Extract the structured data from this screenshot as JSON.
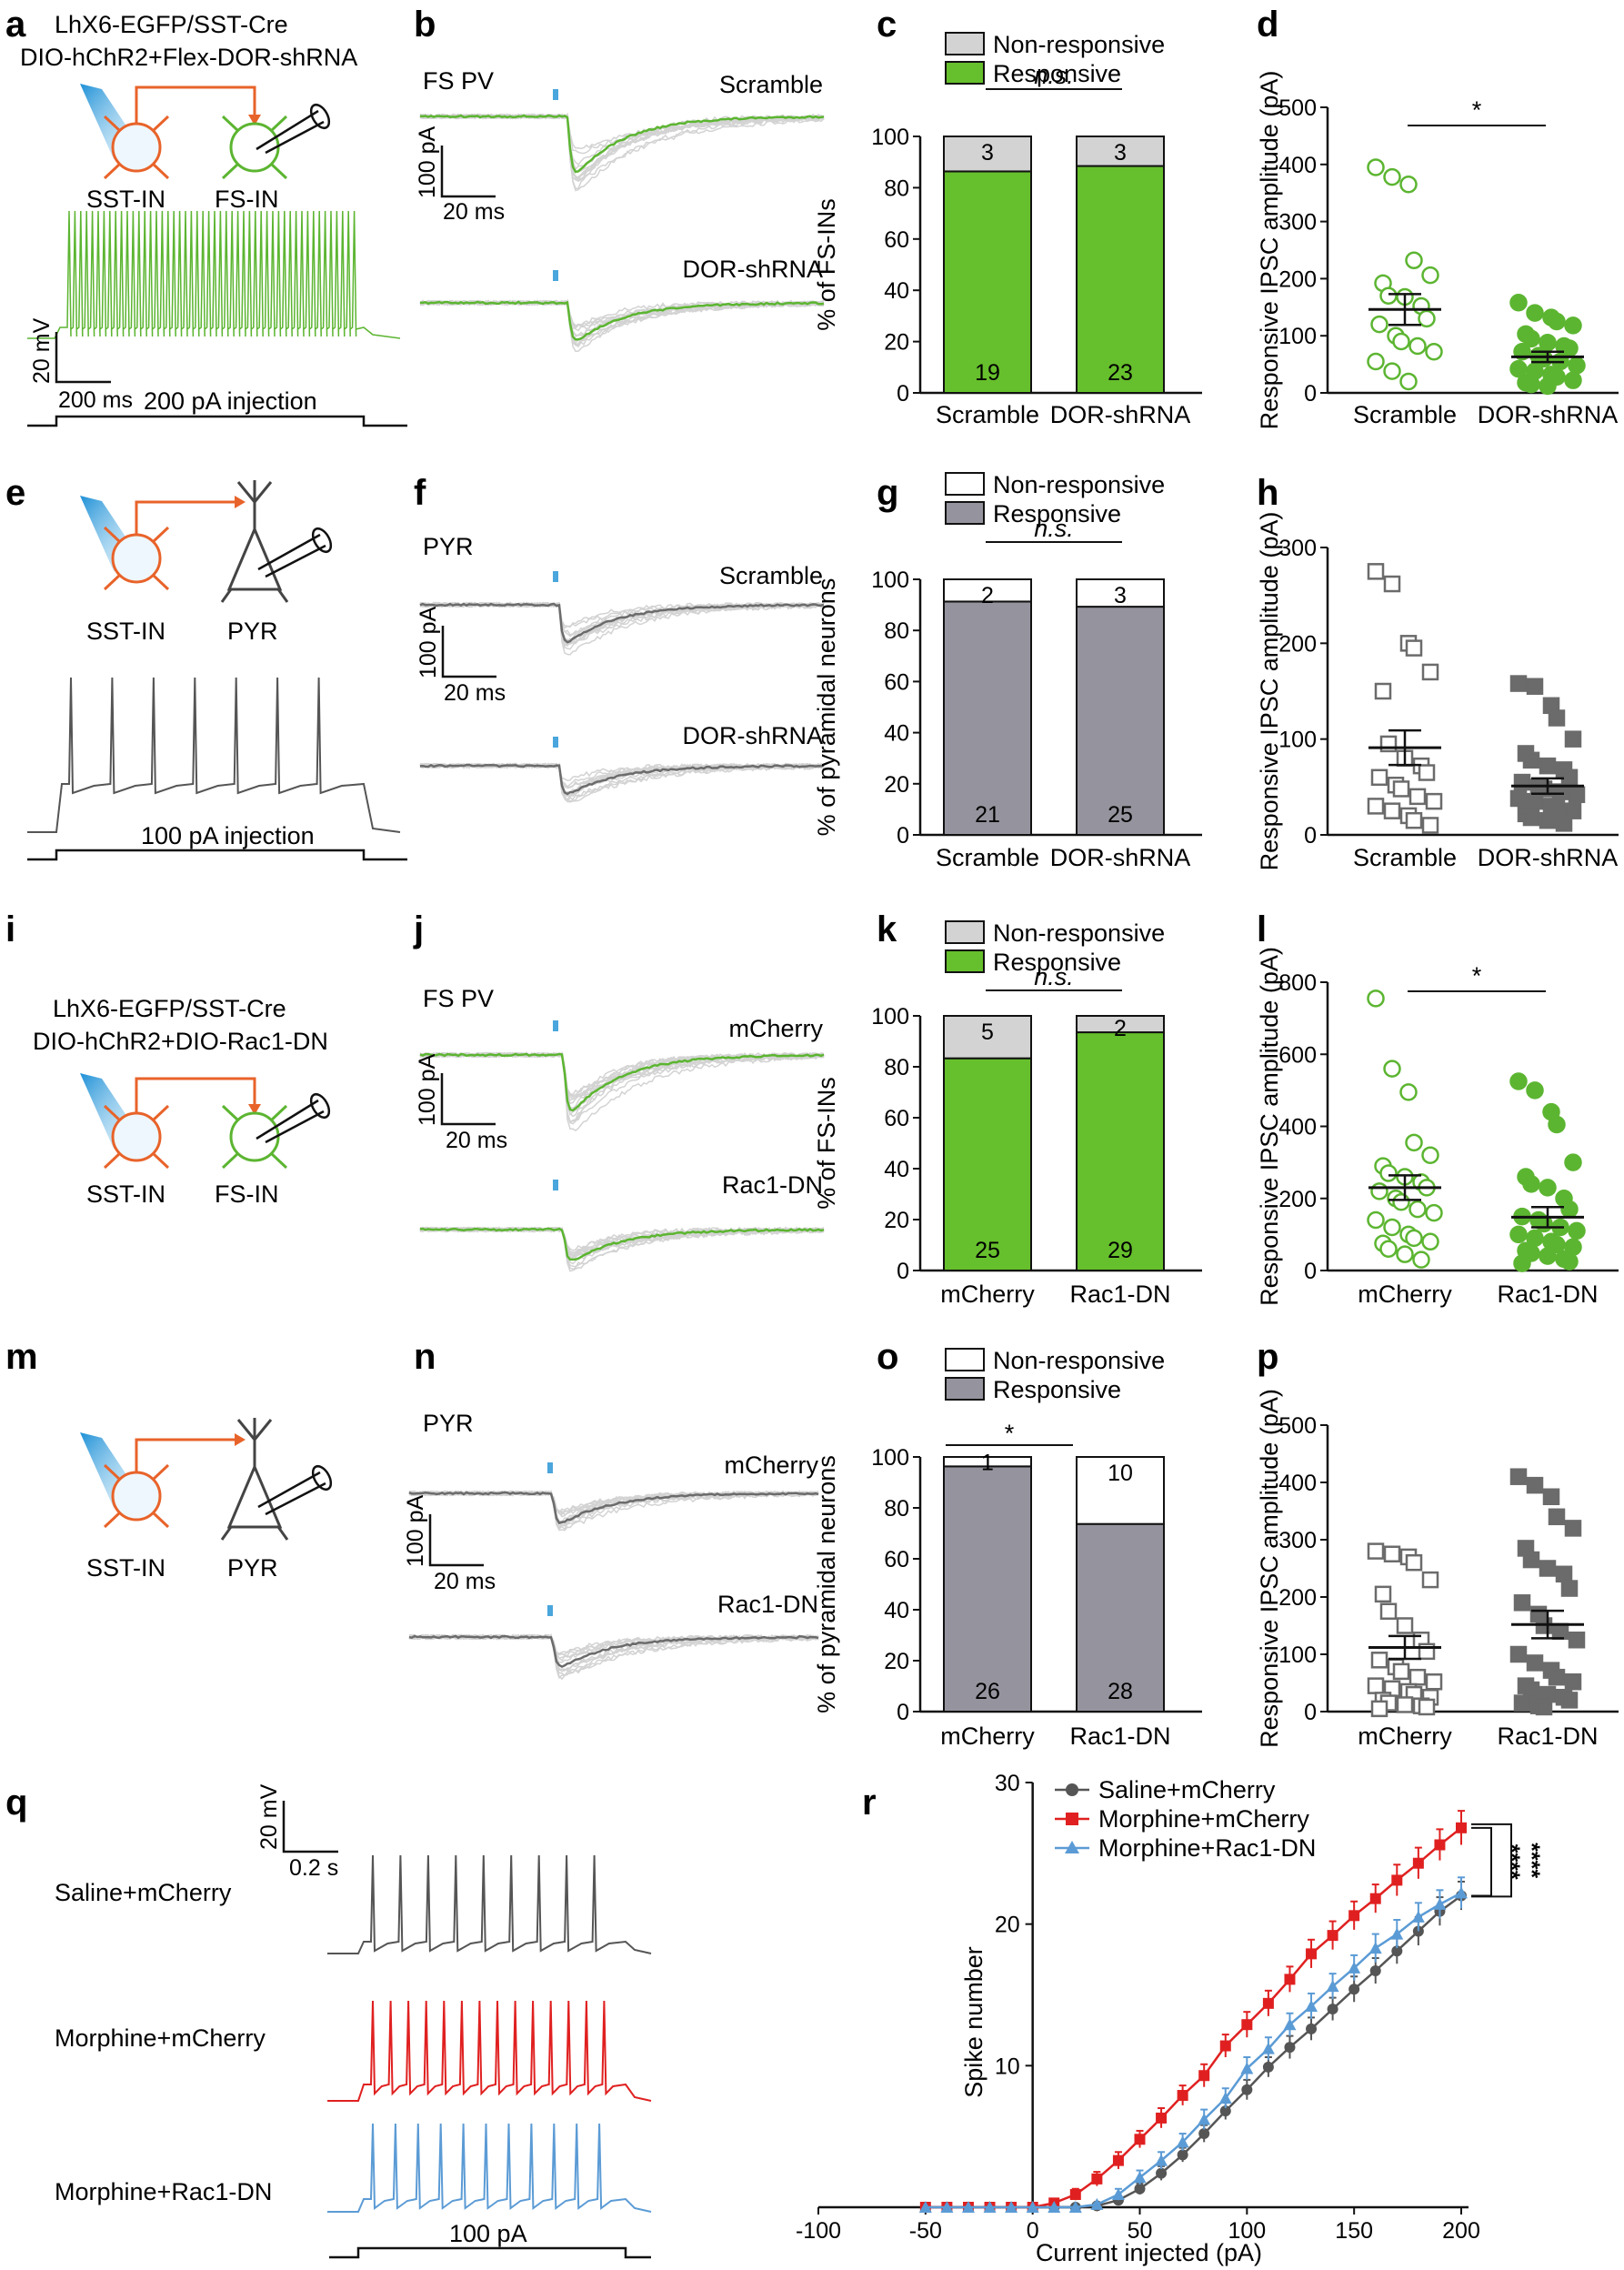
{
  "figure": {
    "panels": {
      "a": {
        "letter": "a",
        "title_lines": [
          "LhX6-EGFP/SST-Cre",
          "DIO-hChR2+Flex-DOR-shRNA"
        ],
        "cell_labels": [
          "SST-IN",
          "FS-IN"
        ],
        "scale_y": "20 mV",
        "scale_x": "200 ms",
        "injection": "200 pA injection"
      },
      "b": {
        "letter": "b",
        "cell_type": "FS PV",
        "trace_labels": [
          "Scramble",
          "DOR-shRNA"
        ],
        "scale_y": "100 pA",
        "scale_x": "20 ms"
      },
      "e": {
        "letter": "e",
        "cell_labels": [
          "SST-IN",
          "PYR"
        ],
        "injection": "100 pA injection"
      },
      "f": {
        "letter": "f",
        "cell_type": "PYR",
        "trace_labels": [
          "Scramble",
          "DOR-shRNA"
        ],
        "scale_y": "100 pA",
        "scale_x": "20 ms"
      },
      "i": {
        "letter": "i",
        "title_lines": [
          "LhX6-EGFP/SST-Cre",
          "DIO-hChR2+DIO-Rac1-DN"
        ],
        "cell_labels": [
          "SST-IN",
          "FS-IN"
        ]
      },
      "j": {
        "letter": "j",
        "cell_type": "FS PV",
        "trace_labels": [
          "mCherry",
          "Rac1-DN"
        ],
        "scale_y": "100 pA",
        "scale_x": "20 ms"
      },
      "m": {
        "letter": "m",
        "cell_labels": [
          "SST-IN",
          "PYR"
        ]
      },
      "n": {
        "letter": "n",
        "cell_type": "PYR",
        "trace_labels": [
          "mCherry",
          "Rac1-DN"
        ],
        "scale_y": "100 pA",
        "scale_x": "20 ms"
      },
      "q": {
        "letter": "q",
        "conditions": [
          "Saline+mCherry",
          "Morphine+mCherry",
          "Morphine+Rac1-DN"
        ],
        "scale_y": "20 mV",
        "scale_x": "0.2 s",
        "injection": "100 pA"
      }
    },
    "colors": {
      "green": "#5cb531",
      "green_fill": "#66bf2c",
      "light_gray": "#d3d3d3",
      "dark_gray": "#6b6b6b",
      "pyr_gray": "#95949e",
      "red": "#e02020",
      "blue": "#5b9bd5",
      "orange": "#e8632a",
      "light_blue": "#4aa6dc"
    }
  },
  "chart_data": [
    {
      "panel": "c",
      "letter": "c",
      "type": "stacked-bar",
      "categories": [
        "Scramble",
        "DOR-shRNA"
      ],
      "series": [
        {
          "name": "Responsive",
          "counts": [
            19,
            23
          ],
          "color": "#66bf2c"
        },
        {
          "name": "Non-responsive",
          "counts": [
            3,
            3
          ],
          "color": "#d3d3d3"
        }
      ],
      "ylabel": "% of  FS-INs",
      "ylim": [
        0,
        100
      ],
      "yticks": [
        0,
        20,
        40,
        60,
        80,
        100
      ],
      "significance": "n.s.",
      "legend": [
        "Non-responsive",
        "Responsive"
      ]
    },
    {
      "panel": "d",
      "letter": "d",
      "type": "scatter",
      "categories": [
        "Scramble",
        "DOR-shRNA"
      ],
      "groups": [
        {
          "name": "Scramble",
          "mean": 146,
          "sem": 27,
          "marker": "circle-open",
          "color": "#5cb531",
          "values": [
            395,
            378,
            365,
            232,
            206,
            192,
            170,
            168,
            152,
            130,
            120,
            100,
            90,
            82,
            72,
            55,
            38,
            20
          ]
        },
        {
          "name": "DOR-shRNA",
          "mean": 63,
          "sem": 9,
          "marker": "circle-filled",
          "color": "#5cb531",
          "values": [
            158,
            140,
            132,
            125,
            118,
            103,
            95,
            88,
            82,
            78,
            72,
            65,
            60,
            55,
            48,
            42,
            38,
            32,
            28,
            22,
            18,
            15,
            12
          ]
        }
      ],
      "ylabel": "Responsive IPSC amplitude (pA)",
      "ylim": [
        0,
        500
      ],
      "yticks": [
        0,
        100,
        200,
        300,
        400,
        500
      ],
      "significance": "*"
    },
    {
      "panel": "g",
      "letter": "g",
      "type": "stacked-bar",
      "categories": [
        "Scramble",
        "DOR-shRNA"
      ],
      "series": [
        {
          "name": "Responsive",
          "counts": [
            21,
            25
          ],
          "color": "#95949e"
        },
        {
          "name": "Non-responsive",
          "counts": [
            2,
            3
          ],
          "color": "#ffffff"
        }
      ],
      "ylabel": "% of  pyramidal neurons",
      "ylim": [
        0,
        100
      ],
      "yticks": [
        0,
        20,
        40,
        60,
        80,
        100
      ],
      "significance": "n.s.",
      "legend": [
        "Non-responsive",
        "Responsive"
      ]
    },
    {
      "panel": "h",
      "letter": "h",
      "type": "scatter",
      "categories": [
        "Scramble",
        "DOR-shRNA"
      ],
      "groups": [
        {
          "name": "Scramble",
          "mean": 91,
          "sem": 18,
          "marker": "square-open",
          "color": "#6b6b6b",
          "values": [
            275,
            262,
            200,
            195,
            170,
            150,
            95,
            80,
            72,
            65,
            60,
            52,
            48,
            40,
            35,
            30,
            25,
            20,
            15,
            10
          ]
        },
        {
          "name": "DOR-shRNA",
          "mean": 51,
          "sem": 8,
          "marker": "square-filled",
          "color": "#6b6b6b",
          "values": [
            158,
            155,
            135,
            122,
            100,
            85,
            78,
            72,
            68,
            60,
            55,
            50,
            48,
            45,
            42,
            38,
            35,
            30,
            28,
            25,
            22,
            18,
            15,
            12
          ]
        }
      ],
      "ylabel": "Responsive IPSC amplitude (pA)",
      "ylim": [
        0,
        300
      ],
      "yticks": [
        0,
        100,
        200,
        300
      ]
    },
    {
      "panel": "k",
      "letter": "k",
      "type": "stacked-bar",
      "categories": [
        "mCherry",
        "Rac1-DN"
      ],
      "series": [
        {
          "name": "Responsive",
          "counts": [
            25,
            29
          ],
          "color": "#66bf2c"
        },
        {
          "name": "Non-responsive",
          "counts": [
            5,
            2
          ],
          "color": "#d3d3d3"
        }
      ],
      "ylabel": "% of  FS-INs",
      "ylim": [
        0,
        100
      ],
      "yticks": [
        0,
        20,
        40,
        60,
        80,
        100
      ],
      "significance": "n.s.",
      "legend": [
        "Non-responsive",
        "Responsive"
      ]
    },
    {
      "panel": "l",
      "letter": "l",
      "type": "scatter",
      "categories": [
        "mCherry",
        "Rac1-DN"
      ],
      "groups": [
        {
          "name": "mCherry",
          "mean": 230,
          "sem": 34,
          "marker": "circle-open",
          "color": "#5cb531",
          "values": [
            755,
            560,
            495,
            355,
            320,
            290,
            270,
            260,
            245,
            230,
            220,
            200,
            190,
            170,
            160,
            140,
            120,
            100,
            90,
            80,
            75,
            60,
            45,
            30
          ]
        },
        {
          "name": "Rac1-DN",
          "mean": 148,
          "sem": 28,
          "marker": "circle-filled",
          "color": "#5cb531",
          "values": [
            525,
            500,
            440,
            405,
            300,
            260,
            240,
            230,
            200,
            170,
            150,
            140,
            130,
            120,
            110,
            100,
            90,
            80,
            72,
            65,
            55,
            48,
            40,
            32,
            25,
            20
          ]
        }
      ],
      "ylabel": "Responsive IPSC amplitude (pA)",
      "ylim": [
        0,
        800
      ],
      "yticks": [
        0,
        200,
        400,
        600,
        800
      ],
      "significance": "*"
    },
    {
      "panel": "o",
      "letter": "o",
      "type": "stacked-bar",
      "categories": [
        "mCherry",
        "Rac1-DN"
      ],
      "series": [
        {
          "name": "Responsive",
          "counts": [
            26,
            28
          ],
          "color": "#95949e"
        },
        {
          "name": "Non-responsive",
          "counts": [
            1,
            10
          ],
          "color": "#ffffff"
        }
      ],
      "ylabel": "% of  pyramidal neurons",
      "ylim": [
        0,
        100
      ],
      "yticks": [
        0,
        20,
        40,
        60,
        80,
        100
      ],
      "significance": "*",
      "legend": [
        "Non-responsive",
        "Responsive"
      ]
    },
    {
      "panel": "p",
      "letter": "p",
      "type": "scatter",
      "categories": [
        "mCherry",
        "Rac1-DN"
      ],
      "groups": [
        {
          "name": "mCherry",
          "mean": 112,
          "sem": 20,
          "marker": "square-open",
          "color": "#6b6b6b",
          "values": [
            280,
            275,
            270,
            260,
            230,
            205,
            175,
            150,
            125,
            105,
            90,
            78,
            70,
            60,
            52,
            45,
            40,
            35,
            30,
            25,
            20,
            15,
            12,
            10,
            8,
            5
          ]
        },
        {
          "name": "Rac1-DN",
          "mean": 152,
          "sem": 24,
          "marker": "square-filled",
          "color": "#6b6b6b",
          "values": [
            410,
            395,
            375,
            340,
            320,
            285,
            265,
            250,
            240,
            215,
            190,
            170,
            150,
            140,
            125,
            100,
            85,
            72,
            60,
            52,
            45,
            38,
            30,
            25,
            20,
            15,
            10,
            8
          ]
        }
      ],
      "ylabel": "Responsive IPSC amplitude (pA)",
      "ylim": [
        0,
        500
      ],
      "yticks": [
        0,
        100,
        200,
        300,
        400,
        500
      ]
    },
    {
      "panel": "r",
      "letter": "r",
      "type": "line",
      "x": [
        -50,
        -40,
        -30,
        -20,
        -10,
        0,
        10,
        20,
        30,
        40,
        50,
        60,
        70,
        80,
        90,
        100,
        110,
        120,
        130,
        140,
        150,
        160,
        170,
        180,
        190,
        200
      ],
      "series": [
        {
          "name": "Saline+mCherry",
          "color": "#555555",
          "marker": "circle",
          "values": [
            0,
            0,
            0,
            0,
            0,
            0,
            0,
            0,
            0.1,
            0.5,
            1.3,
            2.4,
            3.7,
            5.2,
            6.8,
            8.3,
            9.9,
            11.3,
            12.6,
            14.0,
            15.4,
            16.7,
            18.1,
            19.5,
            20.9,
            22.0
          ],
          "sem": [
            0,
            0,
            0,
            0,
            0,
            0,
            0,
            0,
            0.1,
            0.3,
            0.4,
            0.5,
            0.5,
            0.6,
            0.6,
            0.7,
            0.7,
            0.8,
            0.8,
            0.8,
            0.9,
            0.9,
            0.9,
            1.0,
            1.0,
            1.0
          ]
        },
        {
          "name": "Morphine+mCherry",
          "color": "#e02020",
          "marker": "square",
          "values": [
            0,
            0,
            0,
            0,
            0,
            0,
            0.3,
            0.9,
            2.0,
            3.3,
            4.8,
            6.3,
            7.9,
            9.3,
            11.4,
            12.9,
            14.4,
            16.1,
            17.9,
            19.2,
            20.6,
            21.8,
            23.1,
            24.3,
            25.6,
            26.8
          ],
          "sem": [
            0,
            0,
            0,
            0,
            0,
            0,
            0.2,
            0.4,
            0.5,
            0.6,
            0.6,
            0.7,
            0.7,
            0.8,
            0.8,
            0.9,
            0.9,
            0.9,
            1.0,
            1.0,
            1.0,
            1.0,
            1.1,
            1.1,
            1.1,
            1.2
          ]
        },
        {
          "name": "Morphine+Rac1-DN",
          "color": "#5b9bd5",
          "marker": "triangle",
          "values": [
            0,
            0,
            0,
            0,
            0,
            0,
            0,
            0,
            0.2,
            0.9,
            2.1,
            3.3,
            4.6,
            6.2,
            7.7,
            9.8,
            11.2,
            12.9,
            14.2,
            15.6,
            16.9,
            18.3,
            19.3,
            20.5,
            21.4,
            22.2
          ],
          "sem": [
            0,
            0,
            0,
            0,
            0,
            0,
            0,
            0,
            0.1,
            0.4,
            0.5,
            0.6,
            0.6,
            0.7,
            0.7,
            0.8,
            0.8,
            0.8,
            0.9,
            0.9,
            0.9,
            1.0,
            1.0,
            1.0,
            1.0,
            1.1
          ]
        }
      ],
      "xlabel": "Current injected (pA)",
      "ylabel": "Spike number",
      "xlim": [
        -100,
        200
      ],
      "ylim": [
        0,
        30
      ],
      "xticks": [
        -100,
        -50,
        0,
        50,
        100,
        150,
        200
      ],
      "yticks": [
        10,
        20,
        30
      ],
      "significance": [
        "****",
        "****"
      ]
    }
  ]
}
